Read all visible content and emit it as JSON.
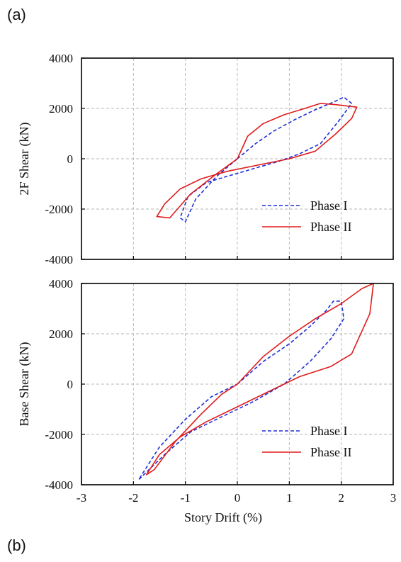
{
  "panel_labels": {
    "a": "(a)",
    "b": "(b)"
  },
  "colors": {
    "phase1": "#1f2fd6",
    "phase2": "#e01b1b",
    "grid": "#b5b5b5",
    "frame": "#000000"
  },
  "chart_data": [
    {
      "type": "line",
      "panel": "(a)",
      "title": "",
      "xlabel": "",
      "ylabel": "2F Shear (kN)",
      "xlim": [
        -3,
        3
      ],
      "ylim": [
        -4000,
        4000
      ],
      "xticks": [
        -3,
        -2,
        -1,
        0,
        1,
        2,
        3
      ],
      "yticks": [
        -4000,
        -2000,
        0,
        2000,
        4000
      ],
      "show_xtick_labels": false,
      "grid": true,
      "legend": "bottom-right",
      "series": [
        {
          "name": "Phase I",
          "style": "dashed",
          "x": [
            0.0,
            0.35,
            0.7,
            1.1,
            1.5,
            1.85,
            2.05,
            2.2,
            1.95,
            1.6,
            1.2,
            0.8,
            0.3,
            -0.2,
            -0.6,
            -0.95,
            -1.1,
            -1.0,
            -0.8,
            -0.4,
            0.0
          ],
          "y": [
            0,
            600,
            1100,
            1550,
            1950,
            2250,
            2450,
            2200,
            1500,
            600,
            200,
            -100,
            -400,
            -700,
            -950,
            -1500,
            -2350,
            -2500,
            -1600,
            -700,
            0
          ]
        },
        {
          "name": "Phase II",
          "style": "solid",
          "x": [
            0.0,
            0.2,
            0.5,
            0.9,
            1.3,
            1.6,
            1.9,
            2.3,
            2.2,
            1.9,
            1.5,
            1.0,
            0.4,
            -0.2,
            -0.7,
            -1.1,
            -1.4,
            -1.55,
            -1.3,
            -0.9,
            -0.4,
            0.0
          ],
          "y": [
            0,
            900,
            1400,
            1750,
            2000,
            2200,
            2150,
            2050,
            1600,
            1000,
            300,
            0,
            -250,
            -500,
            -800,
            -1200,
            -1800,
            -2300,
            -2350,
            -1400,
            -600,
            0
          ]
        }
      ]
    },
    {
      "type": "line",
      "panel": "(b)",
      "title": "",
      "xlabel": "Story Drift (%)",
      "ylabel": "Base Shear (kN)",
      "xlim": [
        -3,
        3
      ],
      "ylim": [
        -4000,
        4000
      ],
      "xticks": [
        -3,
        -2,
        -1,
        0,
        1,
        2,
        3
      ],
      "yticks": [
        -4000,
        -2000,
        0,
        2000,
        4000
      ],
      "show_xtick_labels": true,
      "grid": true,
      "legend": "bottom-right",
      "series": [
        {
          "name": "Phase I",
          "style": "dashed",
          "x": [
            0.0,
            0.5,
            1.0,
            1.4,
            1.7,
            1.85,
            2.0,
            2.05,
            1.8,
            1.4,
            0.9,
            0.3,
            -0.3,
            -0.9,
            -1.4,
            -1.8,
            -1.9,
            -1.5,
            -1.0,
            -0.5,
            0.0
          ],
          "y": [
            0,
            900,
            1600,
            2300,
            2900,
            3300,
            3300,
            2600,
            1800,
            900,
            0,
            -700,
            -1300,
            -1900,
            -2800,
            -3600,
            -3800,
            -2500,
            -1400,
            -500,
            0
          ]
        },
        {
          "name": "Phase II",
          "style": "solid",
          "x": [
            0.0,
            0.5,
            1.0,
            1.5,
            2.0,
            2.4,
            2.62,
            2.55,
            2.2,
            1.8,
            1.2,
            0.6,
            0.0,
            -0.6,
            -1.1,
            -1.5,
            -1.75,
            -1.6,
            -1.2,
            -0.7,
            -0.3,
            0.0
          ],
          "y": [
            0,
            1100,
            1900,
            2600,
            3200,
            3800,
            4000,
            2800,
            1200,
            700,
            300,
            -300,
            -900,
            -1500,
            -2100,
            -2800,
            -3600,
            -3400,
            -2300,
            -1200,
            -400,
            0
          ]
        }
      ]
    }
  ]
}
